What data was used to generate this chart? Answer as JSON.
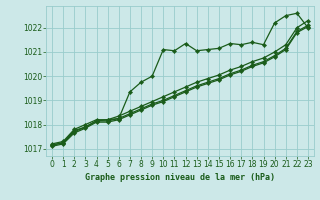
{
  "background_color": "#cce8e8",
  "grid_color": "#99cccc",
  "line_color": "#1a5c1a",
  "title": "Graphe pression niveau de la mer (hPa)",
  "ylim": [
    1016.7,
    1022.9
  ],
  "xlim": [
    -0.5,
    23.5
  ],
  "yticks": [
    1017,
    1018,
    1019,
    1020,
    1021,
    1022
  ],
  "xticks": [
    0,
    1,
    2,
    3,
    4,
    5,
    6,
    7,
    8,
    9,
    10,
    11,
    12,
    13,
    14,
    15,
    16,
    17,
    18,
    19,
    20,
    21,
    22,
    23
  ],
  "lines": [
    {
      "x": [
        0,
        1,
        2,
        3,
        4,
        5,
        6,
        7,
        8,
        9,
        10,
        11,
        12,
        13,
        14,
        15,
        16,
        17,
        18,
        19,
        20,
        21,
        22,
        23
      ],
      "y": [
        1017.15,
        1017.25,
        1017.75,
        1017.9,
        1018.15,
        1018.2,
        1018.25,
        1019.35,
        1019.75,
        1020.0,
        1021.1,
        1021.05,
        1021.35,
        1021.05,
        1021.1,
        1021.15,
        1021.35,
        1021.3,
        1021.4,
        1021.3,
        1022.2,
        1022.5,
        1022.6,
        1022.0
      ],
      "marker": "D",
      "markersize": 2.2,
      "linewidth": 0.9
    },
    {
      "x": [
        0,
        1,
        2,
        3,
        4,
        5,
        6,
        7,
        8,
        9,
        10,
        11,
        12,
        13,
        14,
        15,
        16,
        17,
        18,
        19,
        20,
        21,
        22,
        23
      ],
      "y": [
        1017.1,
        1017.2,
        1017.65,
        1017.85,
        1018.1,
        1018.1,
        1018.2,
        1018.4,
        1018.6,
        1018.8,
        1018.95,
        1019.15,
        1019.35,
        1019.55,
        1019.7,
        1019.85,
        1020.05,
        1020.2,
        1020.4,
        1020.55,
        1020.8,
        1021.1,
        1021.8,
        1022.05
      ],
      "marker": "D",
      "markersize": 2.2,
      "linewidth": 0.9
    },
    {
      "x": [
        0,
        1,
        2,
        3,
        4,
        5,
        6,
        7,
        8,
        9,
        10,
        11,
        12,
        13,
        14,
        15,
        16,
        17,
        18,
        19,
        20,
        21,
        22,
        23
      ],
      "y": [
        1017.15,
        1017.25,
        1017.7,
        1017.9,
        1018.15,
        1018.15,
        1018.25,
        1018.45,
        1018.65,
        1018.85,
        1019.0,
        1019.2,
        1019.4,
        1019.6,
        1019.75,
        1019.9,
        1020.1,
        1020.25,
        1020.45,
        1020.6,
        1020.85,
        1021.15,
        1021.85,
        1022.1
      ],
      "marker": "D",
      "markersize": 2.2,
      "linewidth": 0.9
    },
    {
      "x": [
        0,
        1,
        2,
        3,
        4,
        5,
        6,
        7,
        8,
        9,
        10,
        11,
        12,
        13,
        14,
        15,
        16,
        17,
        18,
        19,
        20,
        21,
        22,
        23
      ],
      "y": [
        1017.2,
        1017.3,
        1017.8,
        1018.0,
        1018.2,
        1018.2,
        1018.35,
        1018.55,
        1018.75,
        1018.95,
        1019.15,
        1019.35,
        1019.55,
        1019.75,
        1019.9,
        1020.05,
        1020.25,
        1020.4,
        1020.6,
        1020.75,
        1021.0,
        1021.3,
        1022.0,
        1022.3
      ],
      "marker": "D",
      "markersize": 2.2,
      "linewidth": 0.9
    }
  ]
}
